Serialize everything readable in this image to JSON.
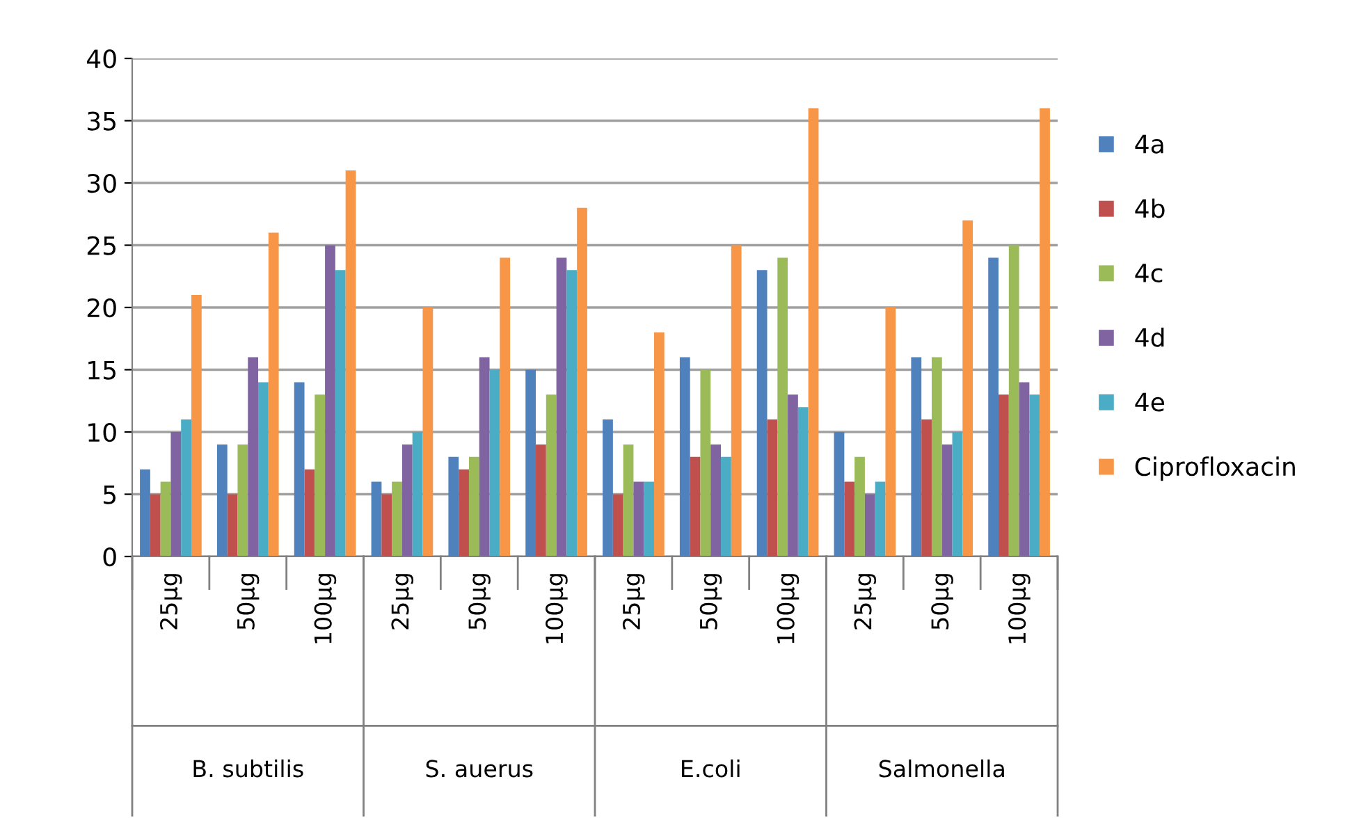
{
  "chart_data": {
    "type": "bar",
    "categories": [
      "25µg",
      "50µg",
      "100µg",
      "25µg",
      "50µg",
      "100µg",
      "25µg",
      "50µg",
      "100µg",
      "25µg",
      "50µg",
      "100µg"
    ],
    "series": [
      {
        "name": "4a",
        "color": "#4f81bd",
        "values": [
          7,
          9,
          14,
          6,
          8,
          15,
          11,
          16,
          23,
          10,
          16,
          24
        ]
      },
      {
        "name": "4b",
        "color": "#c0504d",
        "values": [
          5,
          5,
          7,
          5,
          7,
          9,
          5,
          8,
          11,
          6,
          11,
          13
        ]
      },
      {
        "name": "4c",
        "color": "#9bbb59",
        "values": [
          6,
          9,
          13,
          6,
          8,
          13,
          9,
          15,
          24,
          8,
          16,
          25
        ]
      },
      {
        "name": "4d",
        "color": "#8064a2",
        "values": [
          10,
          16,
          25,
          9,
          16,
          24,
          6,
          9,
          13,
          5,
          9,
          14
        ]
      },
      {
        "name": "4e",
        "color": "#4bacc6",
        "values": [
          11,
          14,
          23,
          10,
          15,
          23,
          6,
          8,
          12,
          6,
          10,
          13
        ]
      },
      {
        "name": "Ciprofloxacin",
        "color": "#f79646",
        "values": [
          21,
          26,
          31,
          20,
          24,
          28,
          18,
          25,
          36,
          20,
          27,
          36
        ]
      }
    ],
    "annotations": [
      "B. subtilis",
      "S. auerus",
      "E.coli",
      "Salmonella"
    ],
    "ylim": [
      0,
      40
    ],
    "yticks": [
      0,
      5,
      10,
      15,
      20,
      25,
      30,
      35,
      40
    ],
    "grid": "y",
    "legend": "right"
  }
}
